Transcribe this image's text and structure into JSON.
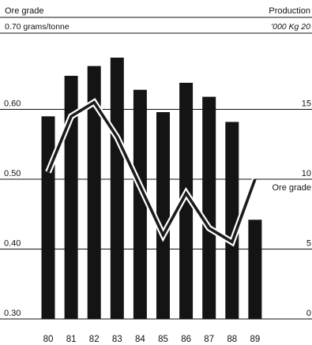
{
  "header": {
    "left_title": "Ore grade",
    "right_title": "Production",
    "left_units": "0.70 grams/tonne",
    "right_units": "'000 Kg 20"
  },
  "chart_data": {
    "type": "bar+line",
    "categories": [
      "80",
      "81",
      "82",
      "83",
      "84",
      "85",
      "86",
      "87",
      "88",
      "89"
    ],
    "series": [
      {
        "axis": "right",
        "kind": "bar",
        "values": [
          14.5,
          17.4,
          18.1,
          18.7,
          16.4,
          14.8,
          16.9,
          15.9,
          14.1,
          7.1
        ]
      },
      {
        "name": "Ore grade",
        "axis": "left",
        "kind": "line",
        "values": [
          0.51,
          0.59,
          0.61,
          0.56,
          0.49,
          0.42,
          0.48,
          0.43,
          0.41,
          0.5
        ]
      }
    ],
    "left_axis": {
      "ticks": [
        "0.30",
        "0.40",
        "0.50",
        "0.60"
      ],
      "ylim": [
        0.3,
        0.7
      ]
    },
    "right_axis": {
      "ticks": [
        "0",
        "5",
        "10",
        "15"
      ],
      "ylim": [
        0,
        20
      ]
    },
    "line_label": "Ore grade",
    "grid": true,
    "colors": {
      "bar": "#141414",
      "line": "#1b1b1b",
      "grid": "#111111"
    }
  }
}
